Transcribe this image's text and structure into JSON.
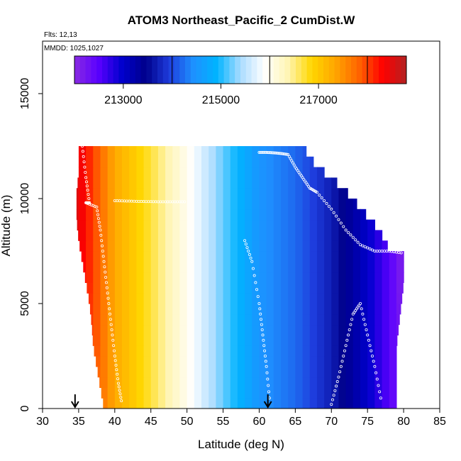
{
  "chart_data": {
    "type": "heatmap",
    "title": "ATOM3 Northeast_Pacific_2 CumDist.W",
    "annotations": {
      "flights": "Flts: 12,13",
      "dates": "MMDD: 1025,1027"
    },
    "xlabel": "Latitude (deg N)",
    "ylabel": "Altitude (m)",
    "xlim": [
      30,
      85
    ],
    "ylim": [
      0,
      17500
    ],
    "xticks": [
      30,
      35,
      40,
      45,
      50,
      55,
      60,
      65,
      70,
      75,
      80,
      85
    ],
    "yticks": [
      0,
      5000,
      10000,
      15000
    ],
    "colorbar": {
      "range": [
        212000,
        218800
      ],
      "tick_values": [
        213000,
        215000,
        217000
      ],
      "tick_labels": [
        "213000",
        "215000",
        "217000"
      ],
      "divisions": [
        214000,
        216000,
        218000
      ],
      "colors": [
        "#8a2be2",
        "#5a00ff",
        "#0000cd",
        "#00008b",
        "#1e3cdc",
        "#1e90ff",
        "#00b4ff",
        "#aadcff",
        "#ffffff",
        "#fff5b4",
        "#ffd700",
        "#ffa500",
        "#ff6400",
        "#ff0000",
        "#b22222"
      ]
    },
    "value_gradient": {
      "description_units": "cumulative distance W",
      "value_at_lat": [
        [
          34.5,
          218600
        ],
        [
          40,
          217300
        ],
        [
          45,
          216700
        ],
        [
          50,
          216000
        ],
        [
          55,
          215200
        ],
        [
          60,
          214500
        ],
        [
          65,
          214200
        ],
        [
          70,
          213700
        ],
        [
          75,
          213000
        ],
        [
          78,
          212500
        ],
        [
          80,
          212100
        ]
      ]
    },
    "data_envelope": {
      "left_edge": [
        [
          0,
          38.5
        ],
        [
          1000,
          38
        ],
        [
          2000,
          37.5
        ],
        [
          3000,
          37
        ],
        [
          4000,
          36.8
        ],
        [
          5000,
          36.5
        ],
        [
          6000,
          36
        ],
        [
          7000,
          35.5
        ],
        [
          8000,
          35
        ],
        [
          9000,
          34.7
        ],
        [
          10000,
          34.7
        ],
        [
          10500,
          34.7
        ],
        [
          11000,
          35
        ],
        [
          12500,
          35
        ]
      ],
      "right_edge": [
        [
          0,
          79
        ],
        [
          3000,
          79
        ],
        [
          6000,
          80
        ],
        [
          7500,
          80
        ],
        [
          7500,
          78
        ],
        [
          8000,
          77.5
        ],
        [
          8500,
          76.5
        ],
        [
          9000,
          75.5
        ],
        [
          9500,
          74
        ],
        [
          10000,
          73
        ],
        [
          10500,
          71.5
        ],
        [
          11000,
          70
        ],
        [
          11500,
          68
        ],
        [
          12000,
          67
        ],
        [
          12500,
          66
        ]
      ],
      "altitude_top": 12500
    },
    "flight_tracks": [
      {
        "lat": [
          35.5,
          36,
          36.5,
          36,
          37.5,
          38,
          38.5,
          39,
          39.5,
          40,
          40.5,
          41
        ],
        "alt": [
          12500,
          11000,
          9800,
          9800,
          9600,
          8500,
          7000,
          5500,
          4000,
          2500,
          1200,
          200
        ]
      },
      {
        "lat": [
          40,
          42,
          44,
          46,
          48,
          50
        ],
        "alt": [
          9900,
          9880,
          9860,
          9850,
          9850,
          9850
        ]
      },
      {
        "lat": [
          60,
          61,
          62,
          63,
          64,
          65,
          66,
          67,
          68,
          70,
          72,
          74,
          76,
          78,
          80
        ],
        "alt": [
          12200,
          12200,
          12180,
          12150,
          12100,
          11500,
          11000,
          10500,
          10300,
          9500,
          8500,
          7800,
          7500,
          7500,
          7400
        ]
      },
      {
        "lat": [
          58,
          59,
          60,
          60.5,
          61,
          61.5
        ],
        "alt": [
          8000,
          7000,
          5000,
          3500,
          2000,
          200
        ]
      },
      {
        "lat": [
          70,
          71,
          72,
          73,
          74,
          75,
          76,
          77
        ],
        "alt": [
          200,
          1500,
          3000,
          4500,
          5000,
          3500,
          2000,
          200
        ]
      }
    ],
    "markers": [
      {
        "lat": 34.5,
        "alt": 0,
        "shape": "down-arrow"
      },
      {
        "lat": 61.2,
        "alt": 0,
        "shape": "down-arrow"
      }
    ]
  }
}
